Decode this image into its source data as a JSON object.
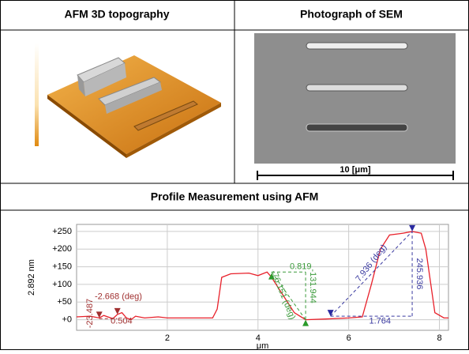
{
  "panels": {
    "left_title": "AFM 3D topography",
    "right_title": "Photograph of SEM",
    "scale_bar": "10 [μm]",
    "section_title": "Profile Measurement using AFM"
  },
  "chart_data": {
    "type": "line",
    "x": [
      0,
      0.3,
      0.5,
      0.6,
      0.8,
      0.9,
      1.0,
      1.1,
      1.2,
      1.3,
      1.5,
      1.8,
      2.0,
      3.0,
      3.1,
      3.2,
      3.4,
      3.8,
      4.0,
      4.2,
      4.3,
      4.5,
      4.8,
      5.05,
      5.5,
      6.0,
      6.3,
      6.5,
      6.7,
      6.9,
      7.2,
      7.4,
      7.6,
      7.7,
      7.9,
      8.1,
      8.2
    ],
    "series": [
      {
        "color": "#e8202a",
        "values": [
          8,
          10,
          5,
          12,
          3,
          15,
          20,
          5,
          0,
          10,
          5,
          8,
          5,
          5,
          30,
          120,
          130,
          132,
          125,
          135,
          120,
          80,
          20,
          0,
          2,
          5,
          8,
          100,
          200,
          240,
          245,
          250,
          245,
          200,
          20,
          5,
          5
        ]
      }
    ],
    "xlim": [
      0,
      8.2
    ],
    "ylim": [
      -30,
      270
    ],
    "xticks": [
      2,
      4,
      6,
      8
    ],
    "yticks": [
      {
        "value": 0,
        "label": "+0"
      },
      {
        "value": 50,
        "label": "+50"
      },
      {
        "value": 100,
        "label": "+100"
      },
      {
        "value": 150,
        "label": "+150"
      },
      {
        "value": 200,
        "label": "+200"
      },
      {
        "value": 250,
        "label": "+250"
      }
    ],
    "xlabel": "μm",
    "ylabel": "2.892 nm",
    "grid": true,
    "annotations": [
      "-2.668 (deg)",
      "-23.487",
      "0.504",
      "0.819",
      "-131.944",
      "-76.151 (deg)",
      "7.936 (deg)",
      "245.936",
      "1.764"
    ]
  }
}
